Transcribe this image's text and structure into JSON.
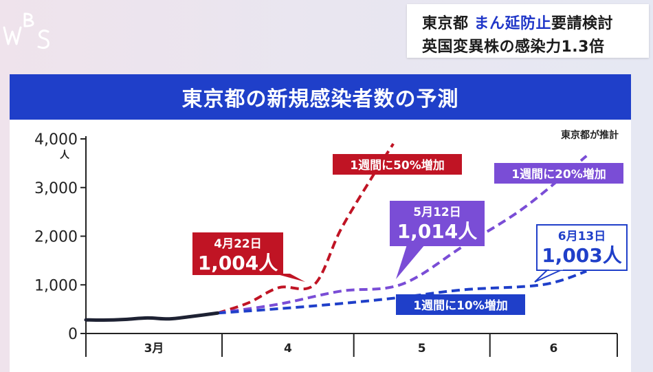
{
  "logo": {
    "text": "WBS"
  },
  "headline": {
    "line1_prefix": "東京都",
    "line1_accent": "まん延防止",
    "line1_suffix": "要請検討",
    "line2": "英国変異株の感染力1.3倍"
  },
  "colors": {
    "title_bar": "#1f3fc9",
    "series_50": "#c01424",
    "series_20": "#7a4dd6",
    "series_10": "#1f3fc9",
    "actual": "#1e2233"
  },
  "chart_data": {
    "type": "line",
    "title": "東京都の新規感染者数の予測",
    "source_note": "東京都が推計",
    "y_unit": "人",
    "ylim": [
      0,
      4000
    ],
    "y_ticks": [
      "0",
      "1,000",
      "2,000",
      "3,000",
      "4,000"
    ],
    "y_tick_values": [
      0,
      1000,
      2000,
      3000,
      4000
    ],
    "x_ticks": [
      "3月",
      "4",
      "5",
      "6"
    ],
    "grid": false,
    "actual_series": {
      "name": "",
      "x": [
        "2021-03-01",
        "2021-03-05",
        "2021-03-10",
        "2021-03-15",
        "2021-03-20",
        "2021-03-25",
        "2021-03-31"
      ],
      "values": [
        280,
        275,
        290,
        320,
        300,
        350,
        420
      ]
    },
    "series": [
      {
        "name": "1週間に50%増加",
        "x": [
          "2021-03-31",
          "2021-04-07",
          "2021-04-14",
          "2021-04-22",
          "2021-04-28",
          "2021-05-05",
          "2021-05-10"
        ],
        "values": [
          420,
          630,
          945,
          1004,
          2130,
          3190,
          3900
        ]
      },
      {
        "name": "1週間に20%増加",
        "x": [
          "2021-03-31",
          "2021-04-14",
          "2021-04-28",
          "2021-05-12",
          "2021-05-26",
          "2021-06-09",
          "2021-06-23"
        ],
        "values": [
          420,
          605,
          870,
          1014,
          1800,
          2600,
          3650
        ]
      },
      {
        "name": "1週間に10%増加",
        "x": [
          "2021-03-31",
          "2021-04-14",
          "2021-04-28",
          "2021-05-12",
          "2021-05-26",
          "2021-06-13",
          "2021-06-23"
        ],
        "values": [
          420,
          510,
          615,
          745,
          900,
          1003,
          1280
        ]
      }
    ],
    "callouts": [
      {
        "series": "1週間に50%増加",
        "date_label": "4月22日",
        "value_label": "1,004人"
      },
      {
        "series": "1週間に20%増加",
        "date_label": "5月12日",
        "value_label": "1,014人"
      },
      {
        "series": "1週間に10%増加",
        "date_label": "6月13日",
        "value_label": "1,003人"
      }
    ]
  }
}
